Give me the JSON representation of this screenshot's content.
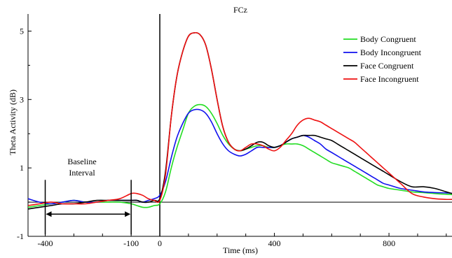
{
  "chart_data": {
    "type": "line",
    "title": "FCz",
    "xlabel": "Time (ms)",
    "ylabel": "Theta Activity (dB)",
    "xlim": [
      -460,
      1020
    ],
    "ylim": [
      -1,
      5.5
    ],
    "x_ticks": [
      -400,
      -100,
      0,
      400,
      800
    ],
    "x_tick_labels": [
      "-400",
      "-100",
      "0",
      "400",
      "800"
    ],
    "x_minor_ticks": [
      -300,
      -200,
      100,
      200,
      300,
      500,
      600,
      700,
      900,
      1000
    ],
    "y_ticks": [
      -1,
      1,
      3,
      5
    ],
    "y_tick_labels": [
      "-1",
      "1",
      "3",
      "5"
    ],
    "y_minor_ticks": [
      0,
      2,
      4
    ],
    "grid": false,
    "legend_position": "top-right",
    "annotation": {
      "line1": "Baseline",
      "line2": "Interval",
      "range": [
        -400,
        -100
      ]
    },
    "series": [
      {
        "name": "Body Congruent",
        "color": "#22dd22",
        "x": [
          -460,
          -420,
          -380,
          -340,
          -300,
          -260,
          -220,
          -180,
          -140,
          -100,
          -80,
          -60,
          -40,
          -20,
          0,
          20,
          40,
          60,
          80,
          100,
          120,
          140,
          160,
          180,
          200,
          220,
          240,
          260,
          280,
          300,
          320,
          340,
          360,
          380,
          400,
          420,
          440,
          460,
          480,
          500,
          520,
          540,
          560,
          580,
          600,
          620,
          640,
          660,
          680,
          700,
          720,
          740,
          760,
          780,
          800,
          840,
          880,
          920,
          960,
          1000,
          1020
        ],
        "y": [
          -0.15,
          -0.1,
          -0.05,
          0.0,
          0.05,
          0.0,
          0.0,
          0.0,
          0.0,
          -0.05,
          -0.1,
          -0.15,
          -0.15,
          -0.1,
          -0.05,
          0.3,
          1.0,
          1.6,
          2.1,
          2.6,
          2.8,
          2.85,
          2.8,
          2.6,
          2.3,
          1.95,
          1.7,
          1.55,
          1.5,
          1.55,
          1.6,
          1.65,
          1.65,
          1.6,
          1.6,
          1.65,
          1.7,
          1.7,
          1.7,
          1.65,
          1.55,
          1.45,
          1.35,
          1.25,
          1.15,
          1.1,
          1.05,
          1.0,
          0.9,
          0.8,
          0.7,
          0.6,
          0.5,
          0.45,
          0.4,
          0.35,
          0.3,
          0.28,
          0.25,
          0.23,
          0.22
        ]
      },
      {
        "name": "Body Incongruent",
        "color": "#1111ee",
        "x": [
          -460,
          -420,
          -380,
          -340,
          -300,
          -260,
          -220,
          -180,
          -140,
          -100,
          -80,
          -60,
          -40,
          -20,
          0,
          20,
          40,
          60,
          80,
          100,
          120,
          140,
          160,
          180,
          200,
          220,
          240,
          260,
          280,
          300,
          320,
          340,
          360,
          380,
          400,
          420,
          440,
          460,
          480,
          500,
          520,
          540,
          560,
          580,
          600,
          620,
          640,
          660,
          680,
          700,
          720,
          740,
          760,
          780,
          800,
          840,
          880,
          920,
          960,
          1000,
          1020
        ],
        "y": [
          0.1,
          0.0,
          -0.05,
          0.0,
          0.05,
          0.0,
          0.0,
          0.05,
          0.05,
          0.05,
          0.05,
          0.0,
          0.05,
          0.1,
          0.2,
          0.6,
          1.3,
          1.9,
          2.3,
          2.6,
          2.7,
          2.7,
          2.6,
          2.35,
          2.0,
          1.7,
          1.5,
          1.4,
          1.35,
          1.4,
          1.5,
          1.6,
          1.6,
          1.6,
          1.6,
          1.65,
          1.75,
          1.85,
          1.9,
          1.95,
          1.9,
          1.8,
          1.7,
          1.55,
          1.45,
          1.35,
          1.25,
          1.15,
          1.05,
          0.95,
          0.85,
          0.75,
          0.65,
          0.55,
          0.5,
          0.4,
          0.35,
          0.3,
          0.28,
          0.27,
          0.26
        ]
      },
      {
        "name": "Face Congruent",
        "color": "#000000",
        "x": [
          -460,
          -420,
          -380,
          -340,
          -300,
          -260,
          -220,
          -180,
          -140,
          -100,
          -80,
          -60,
          -40,
          -20,
          0,
          20,
          40,
          60,
          80,
          100,
          120,
          140,
          160,
          180,
          200,
          220,
          240,
          260,
          280,
          300,
          320,
          340,
          360,
          380,
          400,
          420,
          440,
          460,
          480,
          500,
          520,
          540,
          560,
          580,
          600,
          620,
          640,
          660,
          680,
          700,
          720,
          740,
          760,
          780,
          800,
          840,
          880,
          920,
          960,
          1000,
          1020
        ],
        "y": [
          -0.2,
          -0.15,
          -0.1,
          -0.05,
          -0.05,
          0.0,
          0.05,
          0.05,
          0.05,
          0.05,
          0.05,
          0.0,
          0.0,
          0.05,
          0.1,
          0.9,
          2.5,
          3.7,
          4.4,
          4.85,
          4.95,
          4.9,
          4.6,
          3.9,
          3.0,
          2.2,
          1.75,
          1.55,
          1.5,
          1.55,
          1.65,
          1.75,
          1.75,
          1.65,
          1.6,
          1.65,
          1.75,
          1.85,
          1.9,
          1.95,
          1.95,
          1.95,
          1.9,
          1.85,
          1.8,
          1.7,
          1.6,
          1.5,
          1.4,
          1.3,
          1.2,
          1.1,
          1.0,
          0.9,
          0.8,
          0.6,
          0.45,
          0.45,
          0.4,
          0.3,
          0.25
        ]
      },
      {
        "name": "Face Incongruent",
        "color": "#ee1111",
        "x": [
          -460,
          -420,
          -380,
          -340,
          -300,
          -260,
          -220,
          -180,
          -140,
          -100,
          -80,
          -60,
          -40,
          -20,
          0,
          20,
          40,
          60,
          80,
          100,
          120,
          140,
          160,
          180,
          200,
          220,
          240,
          260,
          280,
          300,
          320,
          340,
          360,
          380,
          400,
          420,
          440,
          460,
          480,
          500,
          520,
          540,
          560,
          580,
          600,
          620,
          640,
          660,
          680,
          700,
          720,
          740,
          760,
          780,
          800,
          840,
          880,
          920,
          960,
          1000,
          1020
        ],
        "y": [
          -0.1,
          -0.05,
          0.0,
          -0.05,
          -0.05,
          -0.05,
          0.0,
          0.05,
          0.1,
          0.25,
          0.25,
          0.2,
          0.1,
          0.05,
          0.05,
          0.8,
          2.5,
          3.7,
          4.4,
          4.85,
          4.95,
          4.9,
          4.6,
          3.9,
          3.0,
          2.2,
          1.75,
          1.55,
          1.5,
          1.6,
          1.7,
          1.7,
          1.65,
          1.55,
          1.5,
          1.6,
          1.8,
          2.0,
          2.25,
          2.4,
          2.45,
          2.4,
          2.35,
          2.25,
          2.15,
          2.05,
          1.95,
          1.85,
          1.75,
          1.6,
          1.45,
          1.3,
          1.15,
          1.0,
          0.85,
          0.55,
          0.25,
          0.15,
          0.1,
          0.08,
          0.08
        ]
      }
    ]
  }
}
